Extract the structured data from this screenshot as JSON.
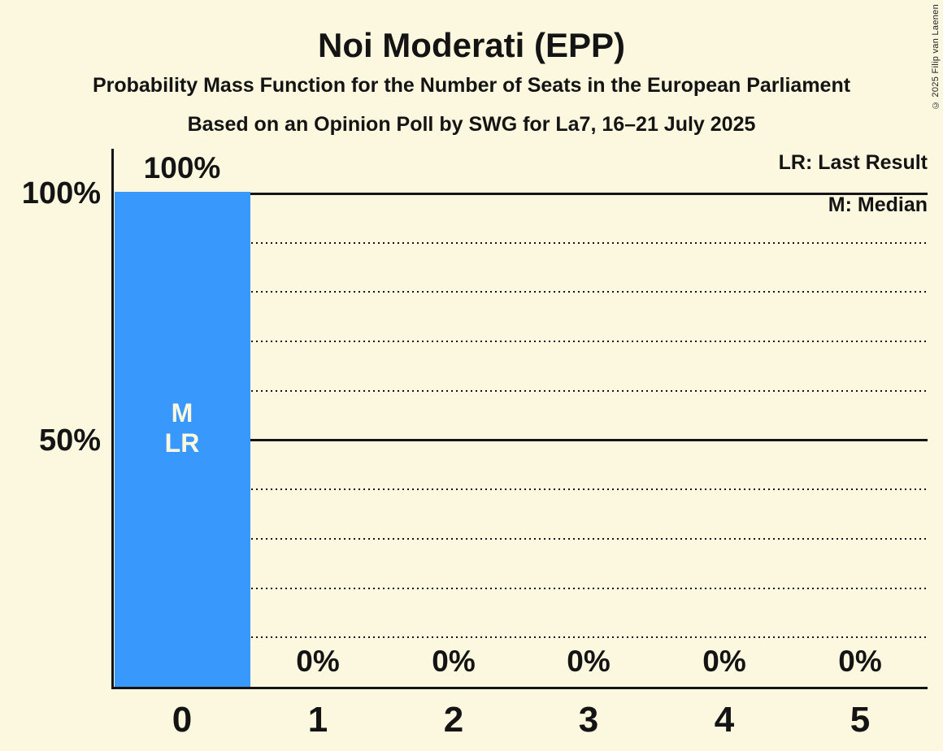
{
  "title": "Noi Moderati (EPP)",
  "subtitle1": "Probability Mass Function for the Number of Seats in the European Parliament",
  "subtitle2": "Based on an Opinion Poll by SWG for La7, 16–21 July 2025",
  "legend": {
    "lr": "LR: Last Result",
    "m": "M: Median"
  },
  "copyright": "© 2025 Filip van Laenen",
  "colors": {
    "background": "#FCF8DF",
    "bar": "#3998FB",
    "text": "#141414",
    "bar_label": "#FCF8DF"
  },
  "chart_data": {
    "type": "bar",
    "title": "Noi Moderati (EPP)",
    "categories": [
      "0",
      "1",
      "2",
      "3",
      "4",
      "5"
    ],
    "values": [
      100,
      0,
      0,
      0,
      0,
      0
    ],
    "value_labels": [
      "100%",
      "0%",
      "0%",
      "0%",
      "0%",
      "0%"
    ],
    "xlabel": "",
    "ylabel": "",
    "ylim": [
      0,
      100
    ],
    "yticks": [
      {
        "value": 100,
        "label": "100%"
      },
      {
        "value": 50,
        "label": "50%"
      }
    ],
    "gridlines": {
      "solid": [
        100,
        50
      ],
      "dotted": [
        90,
        80,
        70,
        60,
        40,
        30,
        20,
        10
      ]
    },
    "legend_position": "top-right",
    "bar_annotation": {
      "category_index": 0,
      "lines": [
        "M",
        "LR"
      ],
      "meaning": "Median and Last Result at 0 seats"
    }
  }
}
